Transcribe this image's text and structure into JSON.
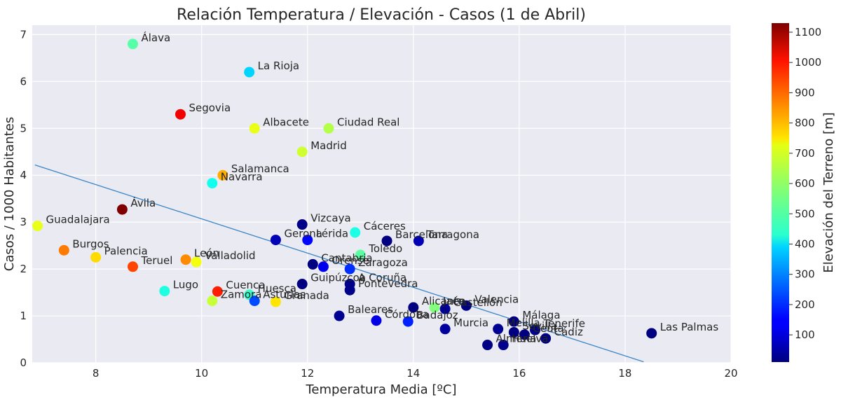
{
  "chart_data": {
    "type": "scatter",
    "title": "Relación Temperatura / Elevación - Casos (1 de Abril)",
    "xlabel": "Temperatura Media [ºC]",
    "ylabel": "Casos / 1000 Habitantes",
    "xlim": [
      6.8,
      20
    ],
    "ylim": [
      0,
      7.2
    ],
    "xticks": [
      8,
      10,
      12,
      14,
      16,
      18,
      20
    ],
    "yticks": [
      0,
      1,
      2,
      3,
      4,
      5,
      6,
      7
    ],
    "grid": true,
    "colorbar": {
      "label": "Elevación del Terreno [m]",
      "min": 10,
      "max": 1130,
      "ticks": [
        100,
        200,
        300,
        400,
        500,
        600,
        700,
        800,
        900,
        1000,
        1100
      ],
      "colormap": "jet"
    },
    "trendline": {
      "x": [
        6.85,
        18.35
      ],
      "y": [
        4.22,
        0.02
      ],
      "color": "#3a87c8"
    },
    "points": [
      {
        "label": "Álava",
        "x": 8.7,
        "y": 6.8,
        "elevation": 525
      },
      {
        "label": "La Rioja",
        "x": 10.9,
        "y": 6.2,
        "elevation": 384
      },
      {
        "label": "Segovia",
        "x": 9.6,
        "y": 5.3,
        "elevation": 1002
      },
      {
        "label": "Albacete",
        "x": 11.0,
        "y": 5.0,
        "elevation": 686
      },
      {
        "label": "Ciudad Real",
        "x": 12.4,
        "y": 5.0,
        "elevation": 628
      },
      {
        "label": "Madrid",
        "x": 11.9,
        "y": 4.5,
        "elevation": 657
      },
      {
        "label": "Salamanca",
        "x": 10.4,
        "y": 4.0,
        "elevation": 800
      },
      {
        "label": "Navarra",
        "x": 10.2,
        "y": 3.83,
        "elevation": 450
      },
      {
        "label": "Ávila",
        "x": 8.5,
        "y": 3.27,
        "elevation": 1131
      },
      {
        "label": "Guadalajara",
        "x": 6.9,
        "y": 2.92,
        "elevation": 685
      },
      {
        "label": "Vizcaya",
        "x": 11.9,
        "y": 2.95,
        "elevation": 19
      },
      {
        "label": "Cáceres",
        "x": 12.9,
        "y": 2.78,
        "elevation": 459
      },
      {
        "label": "Gerona",
        "x": 11.4,
        "y": 2.62,
        "elevation": 70
      },
      {
        "label": "Lérida",
        "x": 12.0,
        "y": 2.62,
        "elevation": 155
      },
      {
        "label": "Barcelona",
        "x": 13.5,
        "y": 2.6,
        "elevation": 12
      },
      {
        "label": "Tarragona",
        "x": 14.1,
        "y": 2.6,
        "elevation": 68
      },
      {
        "label": "Toledo",
        "x": 13.0,
        "y": 2.3,
        "elevation": 529
      },
      {
        "label": "Burgos",
        "x": 7.4,
        "y": 2.4,
        "elevation": 856
      },
      {
        "label": "Palencia",
        "x": 8.0,
        "y": 2.25,
        "elevation": 749
      },
      {
        "label": "León",
        "x": 9.7,
        "y": 2.2,
        "elevation": 837
      },
      {
        "label": "Valladolid",
        "x": 9.9,
        "y": 2.15,
        "elevation": 698
      },
      {
        "label": "Teruel",
        "x": 8.7,
        "y": 2.05,
        "elevation": 915
      },
      {
        "label": "Cantabria",
        "x": 12.1,
        "y": 2.1,
        "elevation": 11
      },
      {
        "label": "Orense",
        "x": 12.3,
        "y": 2.05,
        "elevation": 132
      },
      {
        "label": "Zaragoza",
        "x": 12.8,
        "y": 2.0,
        "elevation": 199
      },
      {
        "label": "Guipúzcoa",
        "x": 11.9,
        "y": 1.68,
        "elevation": 7
      },
      {
        "label": "A Coruña",
        "x": 12.8,
        "y": 1.68,
        "elevation": 20
      },
      {
        "label": "Pontevedra",
        "x": 12.8,
        "y": 1.55,
        "elevation": 19
      },
      {
        "label": "Lugo",
        "x": 9.3,
        "y": 1.53,
        "elevation": 465
      },
      {
        "label": "Cuenca",
        "x": 10.3,
        "y": 1.52,
        "elevation": 956
      },
      {
        "label": "Huesca",
        "x": 10.9,
        "y": 1.45,
        "elevation": 488
      },
      {
        "label": "Zamora",
        "x": 10.2,
        "y": 1.32,
        "elevation": 649
      },
      {
        "label": "Asturias",
        "x": 11.0,
        "y": 1.32,
        "elevation": 232
      },
      {
        "label": "Granada",
        "x": 11.4,
        "y": 1.3,
        "elevation": 738
      },
      {
        "label": "Baleares",
        "x": 12.6,
        "y": 1.0,
        "elevation": 30
      },
      {
        "label": "Córdoba",
        "x": 13.3,
        "y": 0.9,
        "elevation": 123
      },
      {
        "label": "Badajoz",
        "x": 13.9,
        "y": 0.88,
        "elevation": 186
      },
      {
        "label": "Alicante",
        "x": 14.0,
        "y": 1.18,
        "elevation": 8
      },
      {
        "label": "Jaén",
        "x": 14.4,
        "y": 1.18,
        "elevation": 573
      },
      {
        "label": "Castellón",
        "x": 14.6,
        "y": 1.15,
        "elevation": 30
      },
      {
        "label": "Valencia",
        "x": 15.0,
        "y": 1.22,
        "elevation": 15
      },
      {
        "label": "Murcia",
        "x": 14.6,
        "y": 0.72,
        "elevation": 43
      },
      {
        "label": "Málaga",
        "x": 15.9,
        "y": 0.88,
        "elevation": 11
      },
      {
        "label": "Melilla",
        "x": 15.6,
        "y": 0.72,
        "elevation": 30
      },
      {
        "label": "Sevilla",
        "x": 15.9,
        "y": 0.65,
        "elevation": 7
      },
      {
        "label": "Ceuta",
        "x": 16.1,
        "y": 0.6,
        "elevation": 10
      },
      {
        "label": "Tenerife",
        "x": 16.3,
        "y": 0.7,
        "elevation": 20
      },
      {
        "label": "Cádiz",
        "x": 16.5,
        "y": 0.52,
        "elevation": 11
      },
      {
        "label": "Almería",
        "x": 15.4,
        "y": 0.38,
        "elevation": 16
      },
      {
        "label": "Huelva",
        "x": 15.7,
        "y": 0.38,
        "elevation": 24
      },
      {
        "label": "Las Palmas",
        "x": 18.5,
        "y": 0.63,
        "elevation": 8
      }
    ]
  }
}
